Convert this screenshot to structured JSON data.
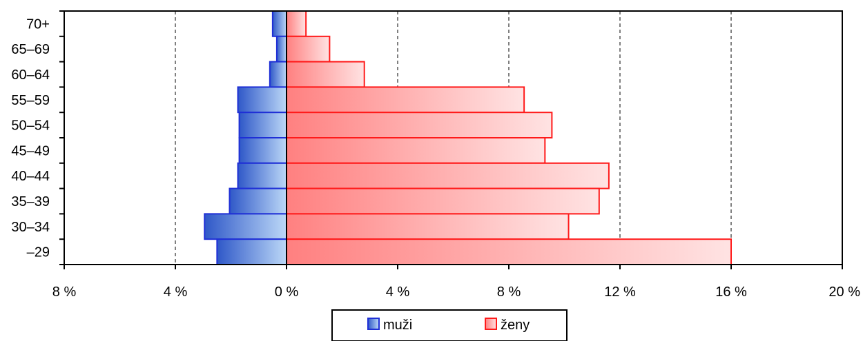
{
  "chart_data": {
    "type": "bar",
    "orientation": "horizontal",
    "categories": [
      "70+",
      "65–69",
      "60–64",
      "55–59",
      "50–54",
      "45–49",
      "40–44",
      "35–39",
      "30–34",
      "–29"
    ],
    "series": [
      {
        "name": "muži",
        "values": [
          0.5,
          0.35,
          0.6,
          1.75,
          1.7,
          1.7,
          1.75,
          2.05,
          2.95,
          2.5
        ],
        "color_edge": "#1f2fd6",
        "color_dark": "#2f58c8",
        "color_light": "#bcd8f7",
        "direction": "left"
      },
      {
        "name": "ženy",
        "values": [
          0.7,
          1.55,
          2.8,
          8.55,
          9.55,
          9.3,
          11.6,
          11.25,
          10.15,
          16.0
        ],
        "color_edge": "#ff1a1a",
        "color_dark": "#ff8080",
        "color_light": "#ffe3e3",
        "direction": "right"
      }
    ],
    "xlim": [
      -8,
      20
    ],
    "xticks": [
      -8,
      -4,
      0,
      4,
      8,
      12,
      16,
      20
    ],
    "xtick_labels": [
      "8 %",
      "4 %",
      "0 %",
      "4 %",
      "8 %",
      "12 %",
      "16 %",
      "20 %"
    ],
    "gridlines": [
      -4,
      4,
      8,
      12,
      16
    ],
    "grid": "vertical dashed",
    "legend_position": "bottom-center"
  }
}
